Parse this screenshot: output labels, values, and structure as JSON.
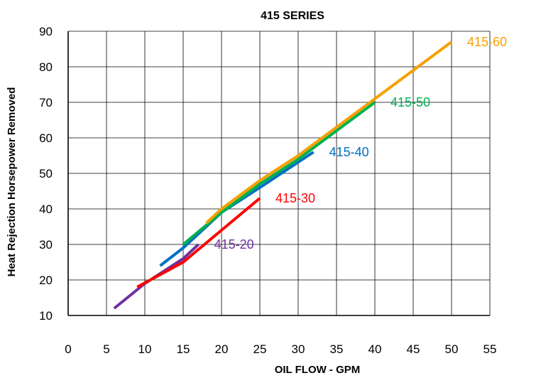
{
  "chart_data": {
    "type": "line",
    "title": "415 SERIES",
    "xlabel": "OIL FLOW - GPM",
    "ylabel": "Heat Rejection Horsepower Removed",
    "xlim": [
      0,
      55
    ],
    "ylim": [
      10,
      90
    ],
    "x_ticks": [
      "0",
      "5",
      "10",
      "15",
      "20",
      "25",
      "30",
      "35",
      "40",
      "45",
      "50",
      "55"
    ],
    "y_ticks": [
      "10",
      "20",
      "30",
      "40",
      "50",
      "60",
      "70",
      "80",
      "90"
    ],
    "grid": true,
    "series": [
      {
        "name": "415-20",
        "color": "#7030A0",
        "x": [
          6,
          10,
          15,
          17
        ],
        "y": [
          12,
          19,
          26,
          30
        ]
      },
      {
        "name": "415-30",
        "color": "#FF0000",
        "x": [
          9,
          15,
          20,
          25
        ],
        "y": [
          18,
          25,
          34,
          43
        ]
      },
      {
        "name": "415-40",
        "color": "#0070C0",
        "x": [
          12,
          15,
          20,
          25,
          32
        ],
        "y": [
          24,
          29,
          39,
          46,
          56
        ]
      },
      {
        "name": "415-50",
        "color": "#00B050",
        "x": [
          15,
          20,
          25,
          30,
          35,
          40
        ],
        "y": [
          30,
          39,
          47,
          54,
          62,
          70
        ]
      },
      {
        "name": "415-60",
        "color": "#F5A000",
        "x": [
          18,
          20,
          25,
          30,
          40,
          50
        ],
        "y": [
          36,
          40,
          48,
          55,
          71,
          87
        ]
      }
    ]
  }
}
